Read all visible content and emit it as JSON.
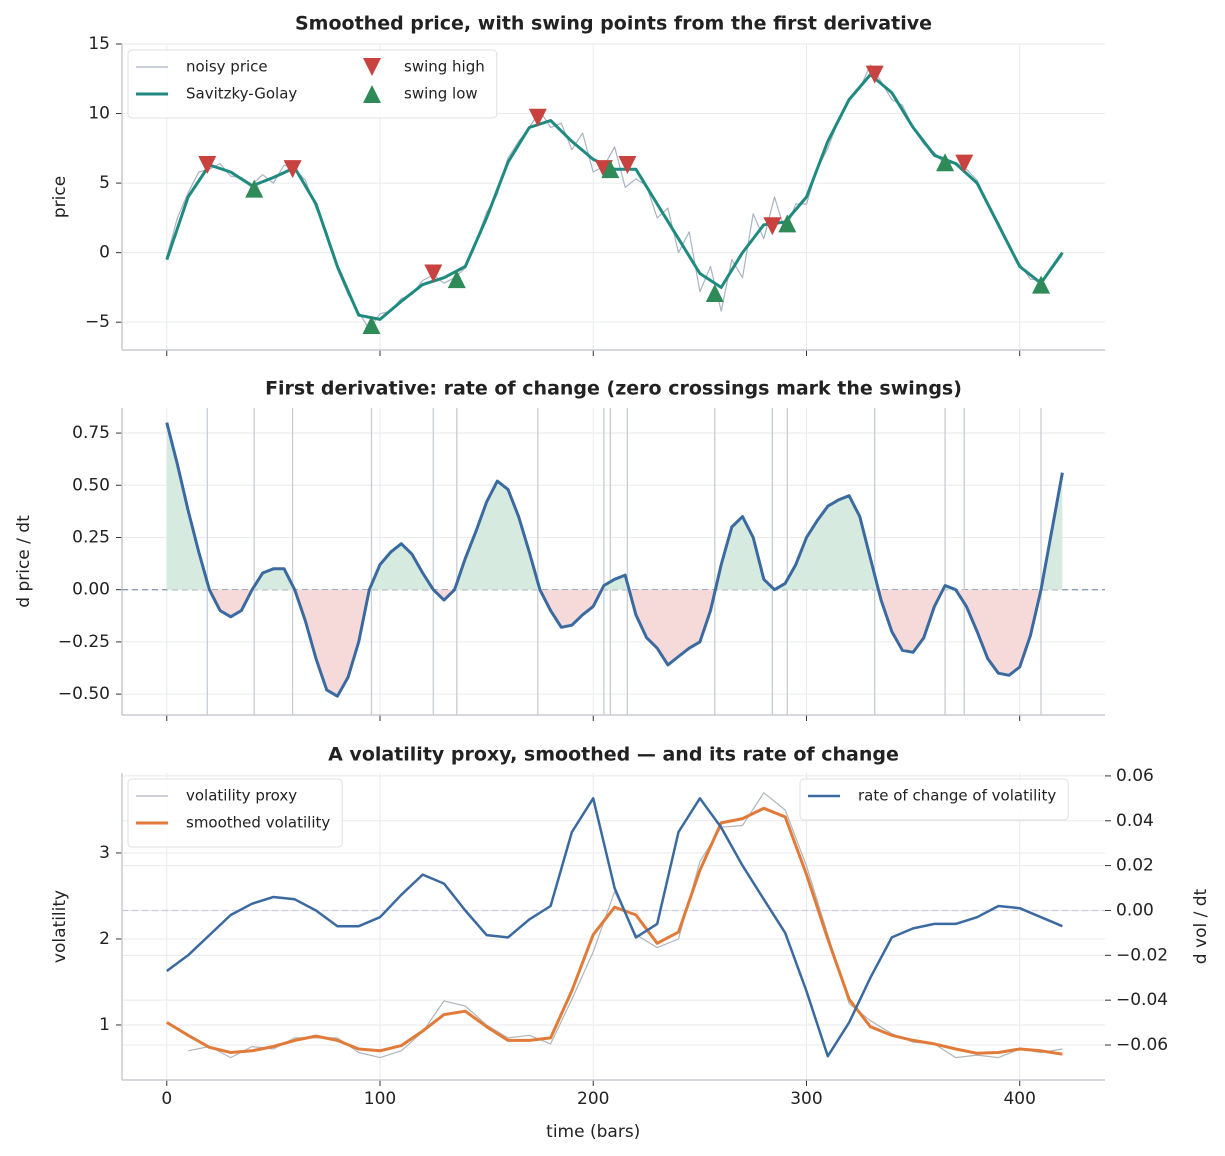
{
  "chart_data": [
    {
      "type": "line",
      "title": "Smoothed price, with swing points from the first derivative",
      "ylabel": "price",
      "xlim": [
        -21,
        440
      ],
      "ylim": [
        -7,
        15
      ],
      "yticks": [
        {
          "value": -5,
          "label": "−5"
        },
        0,
        5,
        10,
        15
      ],
      "grid": true,
      "legend": "upper left",
      "legend_columns": 2,
      "series": [
        {
          "name": "noisy price",
          "color": "#a9b4c2",
          "kind": "line",
          "width": 1.2,
          "x": [
            0,
            5,
            10,
            15,
            20,
            25,
            30,
            35,
            40,
            45,
            50,
            55,
            60,
            65,
            70,
            75,
            80,
            85,
            90,
            95,
            100,
            105,
            110,
            115,
            120,
            125,
            130,
            135,
            140,
            145,
            150,
            155,
            160,
            165,
            170,
            175,
            180,
            185,
            190,
            195,
            200,
            205,
            210,
            215,
            220,
            225,
            230,
            235,
            240,
            245,
            250,
            255,
            260,
            265,
            270,
            275,
            280,
            285,
            290,
            295,
            300,
            305,
            310,
            315,
            320,
            325,
            330,
            335,
            340,
            345,
            350,
            355,
            360,
            365,
            370,
            375,
            380,
            385,
            390,
            395,
            400,
            405,
            410,
            415,
            420
          ],
          "values": [
            -0.3,
            2.5,
            4.3,
            5.8,
            6.0,
            6.4,
            5.5,
            5.4,
            4.9,
            5.6,
            5.0,
            6.3,
            6.0,
            5.2,
            3.2,
            1.5,
            -1.2,
            -3.0,
            -4.3,
            -5.5,
            -4.4,
            -4.2,
            -3.3,
            -3.0,
            -2.0,
            -1.6,
            -2.2,
            -1.8,
            -1.1,
            0.8,
            2.9,
            4.2,
            6.8,
            8.0,
            9.0,
            10.2,
            9.0,
            9.3,
            7.4,
            8.6,
            5.8,
            6.2,
            7.6,
            4.7,
            5.3,
            4.8,
            2.5,
            3.2,
            0.0,
            1.5,
            -2.8,
            -1.0,
            -4.2,
            -0.5,
            -1.8,
            2.8,
            1.0,
            4.0,
            1.5,
            3.5,
            3.5,
            6.0,
            7.5,
            9.5,
            11.0,
            11.8,
            13.5,
            12.3,
            11.0,
            10.6,
            9.0,
            7.8,
            7.2,
            6.3,
            6.5,
            6.0,
            5.2,
            3.5,
            2.2,
            0.5,
            -0.8,
            -1.9,
            -2.0,
            -1.2,
            -0.2
          ]
        },
        {
          "name": "Savitzky-Golay",
          "color": "#1f8a80",
          "kind": "line",
          "width": 3,
          "x": [
            0,
            10,
            20,
            30,
            40,
            50,
            60,
            70,
            80,
            90,
            100,
            110,
            120,
            130,
            140,
            150,
            160,
            170,
            180,
            190,
            200,
            210,
            220,
            230,
            240,
            250,
            260,
            270,
            280,
            290,
            300,
            310,
            320,
            330,
            340,
            350,
            360,
            370,
            380,
            390,
            400,
            410,
            420
          ],
          "values": [
            -0.5,
            4.0,
            6.3,
            5.8,
            4.8,
            5.4,
            6.1,
            3.5,
            -1.0,
            -4.5,
            -4.8,
            -3.5,
            -2.3,
            -1.8,
            -1.0,
            2.5,
            6.5,
            9.0,
            9.5,
            8.0,
            6.7,
            6.0,
            6.0,
            3.5,
            1.0,
            -1.5,
            -2.5,
            0.0,
            2.0,
            2.2,
            4.0,
            8.0,
            11.0,
            12.8,
            11.5,
            9.0,
            7.0,
            6.4,
            5.0,
            2.0,
            -1.0,
            -2.2,
            0.0
          ]
        },
        {
          "name": "swing high",
          "color": "#c8423f",
          "kind": "scatter",
          "marker": "down",
          "x": [
            19,
            59,
            125,
            174,
            205,
            216,
            284,
            332,
            374
          ],
          "values": [
            6.3,
            6.0,
            -1.5,
            9.7,
            6.0,
            6.3,
            1.9,
            12.8,
            6.4
          ]
        },
        {
          "name": "swing low",
          "color": "#2e8b57",
          "kind": "scatter",
          "marker": "up",
          "x": [
            41,
            96,
            136,
            208,
            257,
            291,
            365,
            410
          ],
          "values": [
            4.6,
            -5.2,
            -1.9,
            6.0,
            -2.9,
            2.1,
            6.5,
            -2.3
          ]
        }
      ]
    },
    {
      "type": "line",
      "title": "First derivative: rate of change (zero crossings mark the swings)",
      "ylabel": "d price / dt",
      "xlim": [
        -21,
        440
      ],
      "ylim": [
        -0.6,
        0.87
      ],
      "yticks": [
        {
          "value": -0.5,
          "label": "−0.50"
        },
        {
          "value": -0.25,
          "label": "−0.25"
        },
        {
          "value": 0,
          "label": "0.00"
        },
        0.25,
        {
          "value": 0.5,
          "label": "0.50"
        },
        0.75
      ],
      "grid": true,
      "zero_line": true,
      "swing_lines": true,
      "fill_colors": {
        "positive": "#d6eadf",
        "negative": "#f6dada"
      },
      "series": [
        {
          "color": "#3a6aa0",
          "kind": "line",
          "width": 3,
          "x": [
            0,
            5,
            10,
            15,
            20,
            25,
            30,
            35,
            40,
            45,
            50,
            55,
            60,
            65,
            70,
            75,
            80,
            85,
            90,
            95,
            100,
            105,
            110,
            115,
            120,
            125,
            130,
            135,
            140,
            145,
            150,
            155,
            160,
            165,
            170,
            175,
            180,
            185,
            190,
            195,
            200,
            205,
            210,
            215,
            220,
            225,
            230,
            235,
            240,
            245,
            250,
            255,
            260,
            265,
            270,
            275,
            280,
            285,
            290,
            295,
            300,
            305,
            310,
            315,
            320,
            325,
            330,
            335,
            340,
            345,
            350,
            355,
            360,
            365,
            370,
            375,
            380,
            385,
            390,
            395,
            400,
            405,
            410,
            415,
            420
          ],
          "values": [
            0.8,
            0.6,
            0.38,
            0.18,
            0.0,
            -0.1,
            -0.13,
            -0.1,
            0.0,
            0.08,
            0.1,
            0.1,
            0.0,
            -0.15,
            -0.33,
            -0.48,
            -0.51,
            -0.42,
            -0.25,
            0.0,
            0.12,
            0.18,
            0.22,
            0.17,
            0.08,
            0.0,
            -0.05,
            0.0,
            0.15,
            0.28,
            0.42,
            0.52,
            0.48,
            0.35,
            0.18,
            0.0,
            -0.1,
            -0.18,
            -0.17,
            -0.12,
            -0.08,
            0.02,
            0.05,
            0.07,
            -0.12,
            -0.23,
            -0.28,
            -0.36,
            -0.32,
            -0.28,
            -0.25,
            -0.1,
            0.12,
            0.3,
            0.35,
            0.25,
            0.05,
            0.0,
            0.03,
            0.12,
            0.25,
            0.33,
            0.4,
            0.43,
            0.45,
            0.35,
            0.15,
            -0.05,
            -0.2,
            -0.29,
            -0.3,
            -0.23,
            -0.08,
            0.02,
            0.0,
            -0.08,
            -0.2,
            -0.33,
            -0.4,
            -0.41,
            -0.37,
            -0.22,
            0.0,
            0.28,
            0.56
          ]
        }
      ]
    },
    {
      "type": "line",
      "title": "A volatility proxy, smoothed — and its rate of change",
      "ylabel": "volatility",
      "xlabel": "time (bars)",
      "y2label": "d vol / dt",
      "y2color": "#3a6aa0",
      "xlim": [
        -21,
        440
      ],
      "xticks": [
        0,
        100,
        200,
        300,
        400
      ],
      "ylim": [
        0.36,
        3.93
      ],
      "yticks": [
        1,
        2,
        3
      ],
      "y2lim": [
        -0.0756,
        0.0613
      ],
      "y2ticks": [
        {
          "value": -0.06,
          "label": "−0.06"
        },
        {
          "value": -0.04,
          "label": "−0.04"
        },
        {
          "value": -0.02,
          "label": "−0.02"
        },
        {
          "value": 0,
          "label": "0.00"
        },
        0.02,
        0.04,
        0.06
      ],
      "grid": true,
      "zero_line": true,
      "legend": "upper left",
      "legend2": "upper right",
      "series": [
        {
          "name": "volatility proxy",
          "color": "#b0b5bb",
          "kind": "line",
          "width": 1.2,
          "x": [
            0,
            10,
            20,
            30,
            40,
            50,
            60,
            70,
            80,
            90,
            100,
            110,
            120,
            130,
            140,
            150,
            160,
            170,
            180,
            190,
            200,
            210,
            220,
            230,
            240,
            250,
            260,
            270,
            280,
            290,
            300,
            310,
            320,
            330,
            340,
            350,
            360,
            370,
            380,
            390,
            400,
            410,
            420
          ],
          "values": [
            null,
            0.7,
            0.75,
            0.62,
            0.75,
            0.72,
            0.85,
            0.85,
            0.85,
            0.68,
            0.62,
            0.7,
            0.92,
            1.28,
            1.22,
            1.0,
            0.85,
            0.88,
            0.78,
            1.3,
            1.85,
            2.55,
            2.05,
            1.9,
            2.0,
            2.9,
            3.3,
            3.32,
            3.7,
            3.5,
            2.85,
            2.05,
            1.25,
            1.05,
            0.9,
            0.8,
            0.78,
            0.62,
            0.65,
            0.62,
            0.72,
            0.68,
            0.72
          ]
        },
        {
          "name": "smoothed volatility",
          "color": "#e07b39",
          "kind": "line",
          "width": 3,
          "x": [
            0,
            10,
            20,
            30,
            40,
            50,
            60,
            70,
            80,
            90,
            100,
            110,
            120,
            130,
            140,
            150,
            160,
            170,
            180,
            190,
            200,
            210,
            220,
            230,
            240,
            250,
            260,
            270,
            280,
            290,
            300,
            310,
            320,
            330,
            340,
            350,
            360,
            370,
            380,
            390,
            400,
            410,
            420
          ],
          "values": [
            1.03,
            0.88,
            0.74,
            0.68,
            0.7,
            0.75,
            0.82,
            0.87,
            0.82,
            0.72,
            0.7,
            0.76,
            0.93,
            1.12,
            1.16,
            0.98,
            0.82,
            0.82,
            0.85,
            1.4,
            2.05,
            2.37,
            2.28,
            1.95,
            2.08,
            2.8,
            3.35,
            3.4,
            3.52,
            3.42,
            2.75,
            2.0,
            1.3,
            0.98,
            0.88,
            0.82,
            0.78,
            0.72,
            0.67,
            0.68,
            0.72,
            0.7,
            0.66
          ]
        },
        {
          "name": "rate of change of volatility",
          "color": "#3a6aa0",
          "kind": "line",
          "width": 2.5,
          "axis": "y2",
          "x": [
            0,
            10,
            20,
            30,
            40,
            50,
            60,
            70,
            80,
            90,
            100,
            110,
            120,
            130,
            140,
            150,
            160,
            170,
            180,
            190,
            200,
            210,
            220,
            230,
            240,
            250,
            260,
            270,
            280,
            290,
            300,
            310,
            320,
            330,
            340,
            350,
            360,
            370,
            380,
            390,
            400,
            410,
            420
          ],
          "values": [
            -0.027,
            -0.02,
            -0.011,
            -0.002,
            0.003,
            0.006,
            0.005,
            0.0,
            -0.007,
            -0.007,
            -0.003,
            0.007,
            0.016,
            0.012,
            0.0,
            -0.011,
            -0.012,
            -0.004,
            0.002,
            0.035,
            0.05,
            0.01,
            -0.012,
            -0.006,
            0.035,
            0.05,
            0.037,
            0.02,
            0.005,
            -0.01,
            -0.036,
            -0.065,
            -0.05,
            -0.03,
            -0.012,
            -0.008,
            -0.006,
            -0.006,
            -0.003,
            0.002,
            0.001,
            -0.003,
            -0.007
          ]
        }
      ]
    }
  ]
}
